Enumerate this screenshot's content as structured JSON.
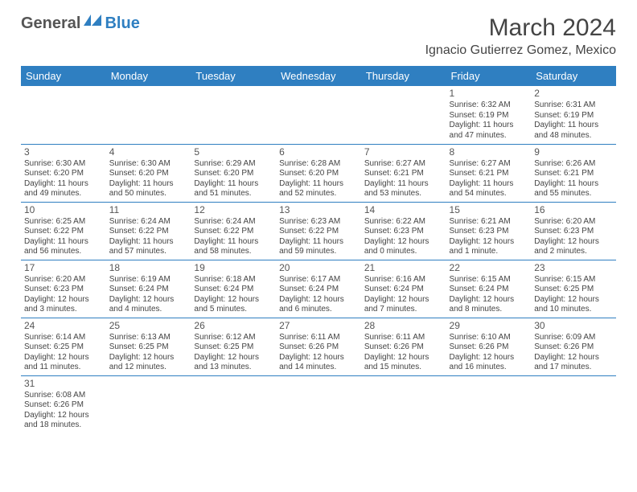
{
  "brand": {
    "part1": "General",
    "part2": "Blue"
  },
  "title": "March 2024",
  "location": "Ignacio Gutierrez Gomez, Mexico",
  "colors": {
    "accent": "#2f7fc1",
    "text": "#444",
    "header_bg": "#2f7fc1",
    "header_fg": "#ffffff"
  },
  "day_headers": [
    "Sunday",
    "Monday",
    "Tuesday",
    "Wednesday",
    "Thursday",
    "Friday",
    "Saturday"
  ],
  "weeks": [
    [
      null,
      null,
      null,
      null,
      null,
      {
        "n": "1",
        "sr": "Sunrise: 6:32 AM",
        "ss": "Sunset: 6:19 PM",
        "dl": "Daylight: 11 hours and 47 minutes."
      },
      {
        "n": "2",
        "sr": "Sunrise: 6:31 AM",
        "ss": "Sunset: 6:19 PM",
        "dl": "Daylight: 11 hours and 48 minutes."
      }
    ],
    [
      {
        "n": "3",
        "sr": "Sunrise: 6:30 AM",
        "ss": "Sunset: 6:20 PM",
        "dl": "Daylight: 11 hours and 49 minutes."
      },
      {
        "n": "4",
        "sr": "Sunrise: 6:30 AM",
        "ss": "Sunset: 6:20 PM",
        "dl": "Daylight: 11 hours and 50 minutes."
      },
      {
        "n": "5",
        "sr": "Sunrise: 6:29 AM",
        "ss": "Sunset: 6:20 PM",
        "dl": "Daylight: 11 hours and 51 minutes."
      },
      {
        "n": "6",
        "sr": "Sunrise: 6:28 AM",
        "ss": "Sunset: 6:20 PM",
        "dl": "Daylight: 11 hours and 52 minutes."
      },
      {
        "n": "7",
        "sr": "Sunrise: 6:27 AM",
        "ss": "Sunset: 6:21 PM",
        "dl": "Daylight: 11 hours and 53 minutes."
      },
      {
        "n": "8",
        "sr": "Sunrise: 6:27 AM",
        "ss": "Sunset: 6:21 PM",
        "dl": "Daylight: 11 hours and 54 minutes."
      },
      {
        "n": "9",
        "sr": "Sunrise: 6:26 AM",
        "ss": "Sunset: 6:21 PM",
        "dl": "Daylight: 11 hours and 55 minutes."
      }
    ],
    [
      {
        "n": "10",
        "sr": "Sunrise: 6:25 AM",
        "ss": "Sunset: 6:22 PM",
        "dl": "Daylight: 11 hours and 56 minutes."
      },
      {
        "n": "11",
        "sr": "Sunrise: 6:24 AM",
        "ss": "Sunset: 6:22 PM",
        "dl": "Daylight: 11 hours and 57 minutes."
      },
      {
        "n": "12",
        "sr": "Sunrise: 6:24 AM",
        "ss": "Sunset: 6:22 PM",
        "dl": "Daylight: 11 hours and 58 minutes."
      },
      {
        "n": "13",
        "sr": "Sunrise: 6:23 AM",
        "ss": "Sunset: 6:22 PM",
        "dl": "Daylight: 11 hours and 59 minutes."
      },
      {
        "n": "14",
        "sr": "Sunrise: 6:22 AM",
        "ss": "Sunset: 6:23 PM",
        "dl": "Daylight: 12 hours and 0 minutes."
      },
      {
        "n": "15",
        "sr": "Sunrise: 6:21 AM",
        "ss": "Sunset: 6:23 PM",
        "dl": "Daylight: 12 hours and 1 minute."
      },
      {
        "n": "16",
        "sr": "Sunrise: 6:20 AM",
        "ss": "Sunset: 6:23 PM",
        "dl": "Daylight: 12 hours and 2 minutes."
      }
    ],
    [
      {
        "n": "17",
        "sr": "Sunrise: 6:20 AM",
        "ss": "Sunset: 6:23 PM",
        "dl": "Daylight: 12 hours and 3 minutes."
      },
      {
        "n": "18",
        "sr": "Sunrise: 6:19 AM",
        "ss": "Sunset: 6:24 PM",
        "dl": "Daylight: 12 hours and 4 minutes."
      },
      {
        "n": "19",
        "sr": "Sunrise: 6:18 AM",
        "ss": "Sunset: 6:24 PM",
        "dl": "Daylight: 12 hours and 5 minutes."
      },
      {
        "n": "20",
        "sr": "Sunrise: 6:17 AM",
        "ss": "Sunset: 6:24 PM",
        "dl": "Daylight: 12 hours and 6 minutes."
      },
      {
        "n": "21",
        "sr": "Sunrise: 6:16 AM",
        "ss": "Sunset: 6:24 PM",
        "dl": "Daylight: 12 hours and 7 minutes."
      },
      {
        "n": "22",
        "sr": "Sunrise: 6:15 AM",
        "ss": "Sunset: 6:24 PM",
        "dl": "Daylight: 12 hours and 8 minutes."
      },
      {
        "n": "23",
        "sr": "Sunrise: 6:15 AM",
        "ss": "Sunset: 6:25 PM",
        "dl": "Daylight: 12 hours and 10 minutes."
      }
    ],
    [
      {
        "n": "24",
        "sr": "Sunrise: 6:14 AM",
        "ss": "Sunset: 6:25 PM",
        "dl": "Daylight: 12 hours and 11 minutes."
      },
      {
        "n": "25",
        "sr": "Sunrise: 6:13 AM",
        "ss": "Sunset: 6:25 PM",
        "dl": "Daylight: 12 hours and 12 minutes."
      },
      {
        "n": "26",
        "sr": "Sunrise: 6:12 AM",
        "ss": "Sunset: 6:25 PM",
        "dl": "Daylight: 12 hours and 13 minutes."
      },
      {
        "n": "27",
        "sr": "Sunrise: 6:11 AM",
        "ss": "Sunset: 6:26 PM",
        "dl": "Daylight: 12 hours and 14 minutes."
      },
      {
        "n": "28",
        "sr": "Sunrise: 6:11 AM",
        "ss": "Sunset: 6:26 PM",
        "dl": "Daylight: 12 hours and 15 minutes."
      },
      {
        "n": "29",
        "sr": "Sunrise: 6:10 AM",
        "ss": "Sunset: 6:26 PM",
        "dl": "Daylight: 12 hours and 16 minutes."
      },
      {
        "n": "30",
        "sr": "Sunrise: 6:09 AM",
        "ss": "Sunset: 6:26 PM",
        "dl": "Daylight: 12 hours and 17 minutes."
      }
    ],
    [
      {
        "n": "31",
        "sr": "Sunrise: 6:08 AM",
        "ss": "Sunset: 6:26 PM",
        "dl": "Daylight: 12 hours and 18 minutes."
      },
      null,
      null,
      null,
      null,
      null,
      null
    ]
  ]
}
